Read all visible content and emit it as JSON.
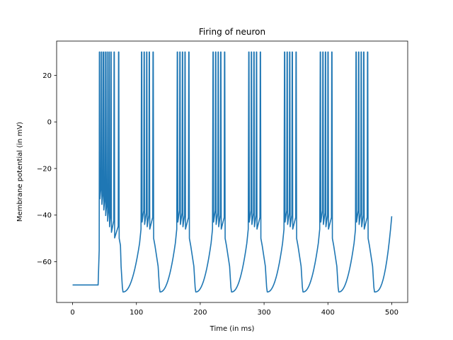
{
  "chart_data": {
    "type": "line",
    "title": "Firing of neuron",
    "xlabel": "Time (in ms)",
    "ylabel": "Membrane potential (in mV)",
    "xlim": [
      -25,
      525
    ],
    "ylim": [
      -77.5,
      34.7
    ],
    "xticks": [
      0,
      100,
      200,
      300,
      400,
      500
    ],
    "yticks": [
      -60,
      -40,
      -20,
      0,
      20
    ],
    "xtick_labels": [
      "0",
      "100",
      "200",
      "300",
      "400",
      "500"
    ],
    "ytick_labels": [
      "−60",
      "−40",
      "−20",
      "0",
      "20"
    ],
    "grid": false,
    "series": [
      {
        "color": "#1f77b4",
        "resting_potential": -70,
        "spike_peak": 30,
        "stimulus_onset": 40,
        "end_time": 500,
        "end_value": -40.5,
        "bursts": [
          {
            "spike_times": [
              42,
              45,
              48,
              51,
              54,
              57,
              60,
              65,
              72
            ],
            "trough": {
              "t": 79,
              "v": -73
            }
          },
          {
            "spike_times": [
              108,
              112,
              116,
              120,
              126
            ],
            "trough": {
              "t": 137,
              "v": -73
            }
          },
          {
            "spike_times": [
              164,
              168,
              172,
              176,
              182
            ],
            "trough": {
              "t": 193,
              "v": -73
            }
          },
          {
            "spike_times": [
              220,
              224,
              228,
              232,
              238
            ],
            "trough": {
              "t": 249,
              "v": -73
            }
          },
          {
            "spike_times": [
              276,
              280,
              284,
              288,
              294
            ],
            "trough": {
              "t": 305,
              "v": -73
            }
          },
          {
            "spike_times": [
              332,
              336,
              340,
              344,
              350
            ],
            "trough": {
              "t": 361,
              "v": -73
            }
          },
          {
            "spike_times": [
              388,
              392,
              396,
              400,
              406
            ],
            "trough": {
              "t": 417,
              "v": -73
            }
          },
          {
            "spike_times": [
              444,
              448,
              452,
              456,
              462
            ],
            "trough": {
              "t": 473,
              "v": -73
            }
          }
        ]
      }
    ]
  }
}
